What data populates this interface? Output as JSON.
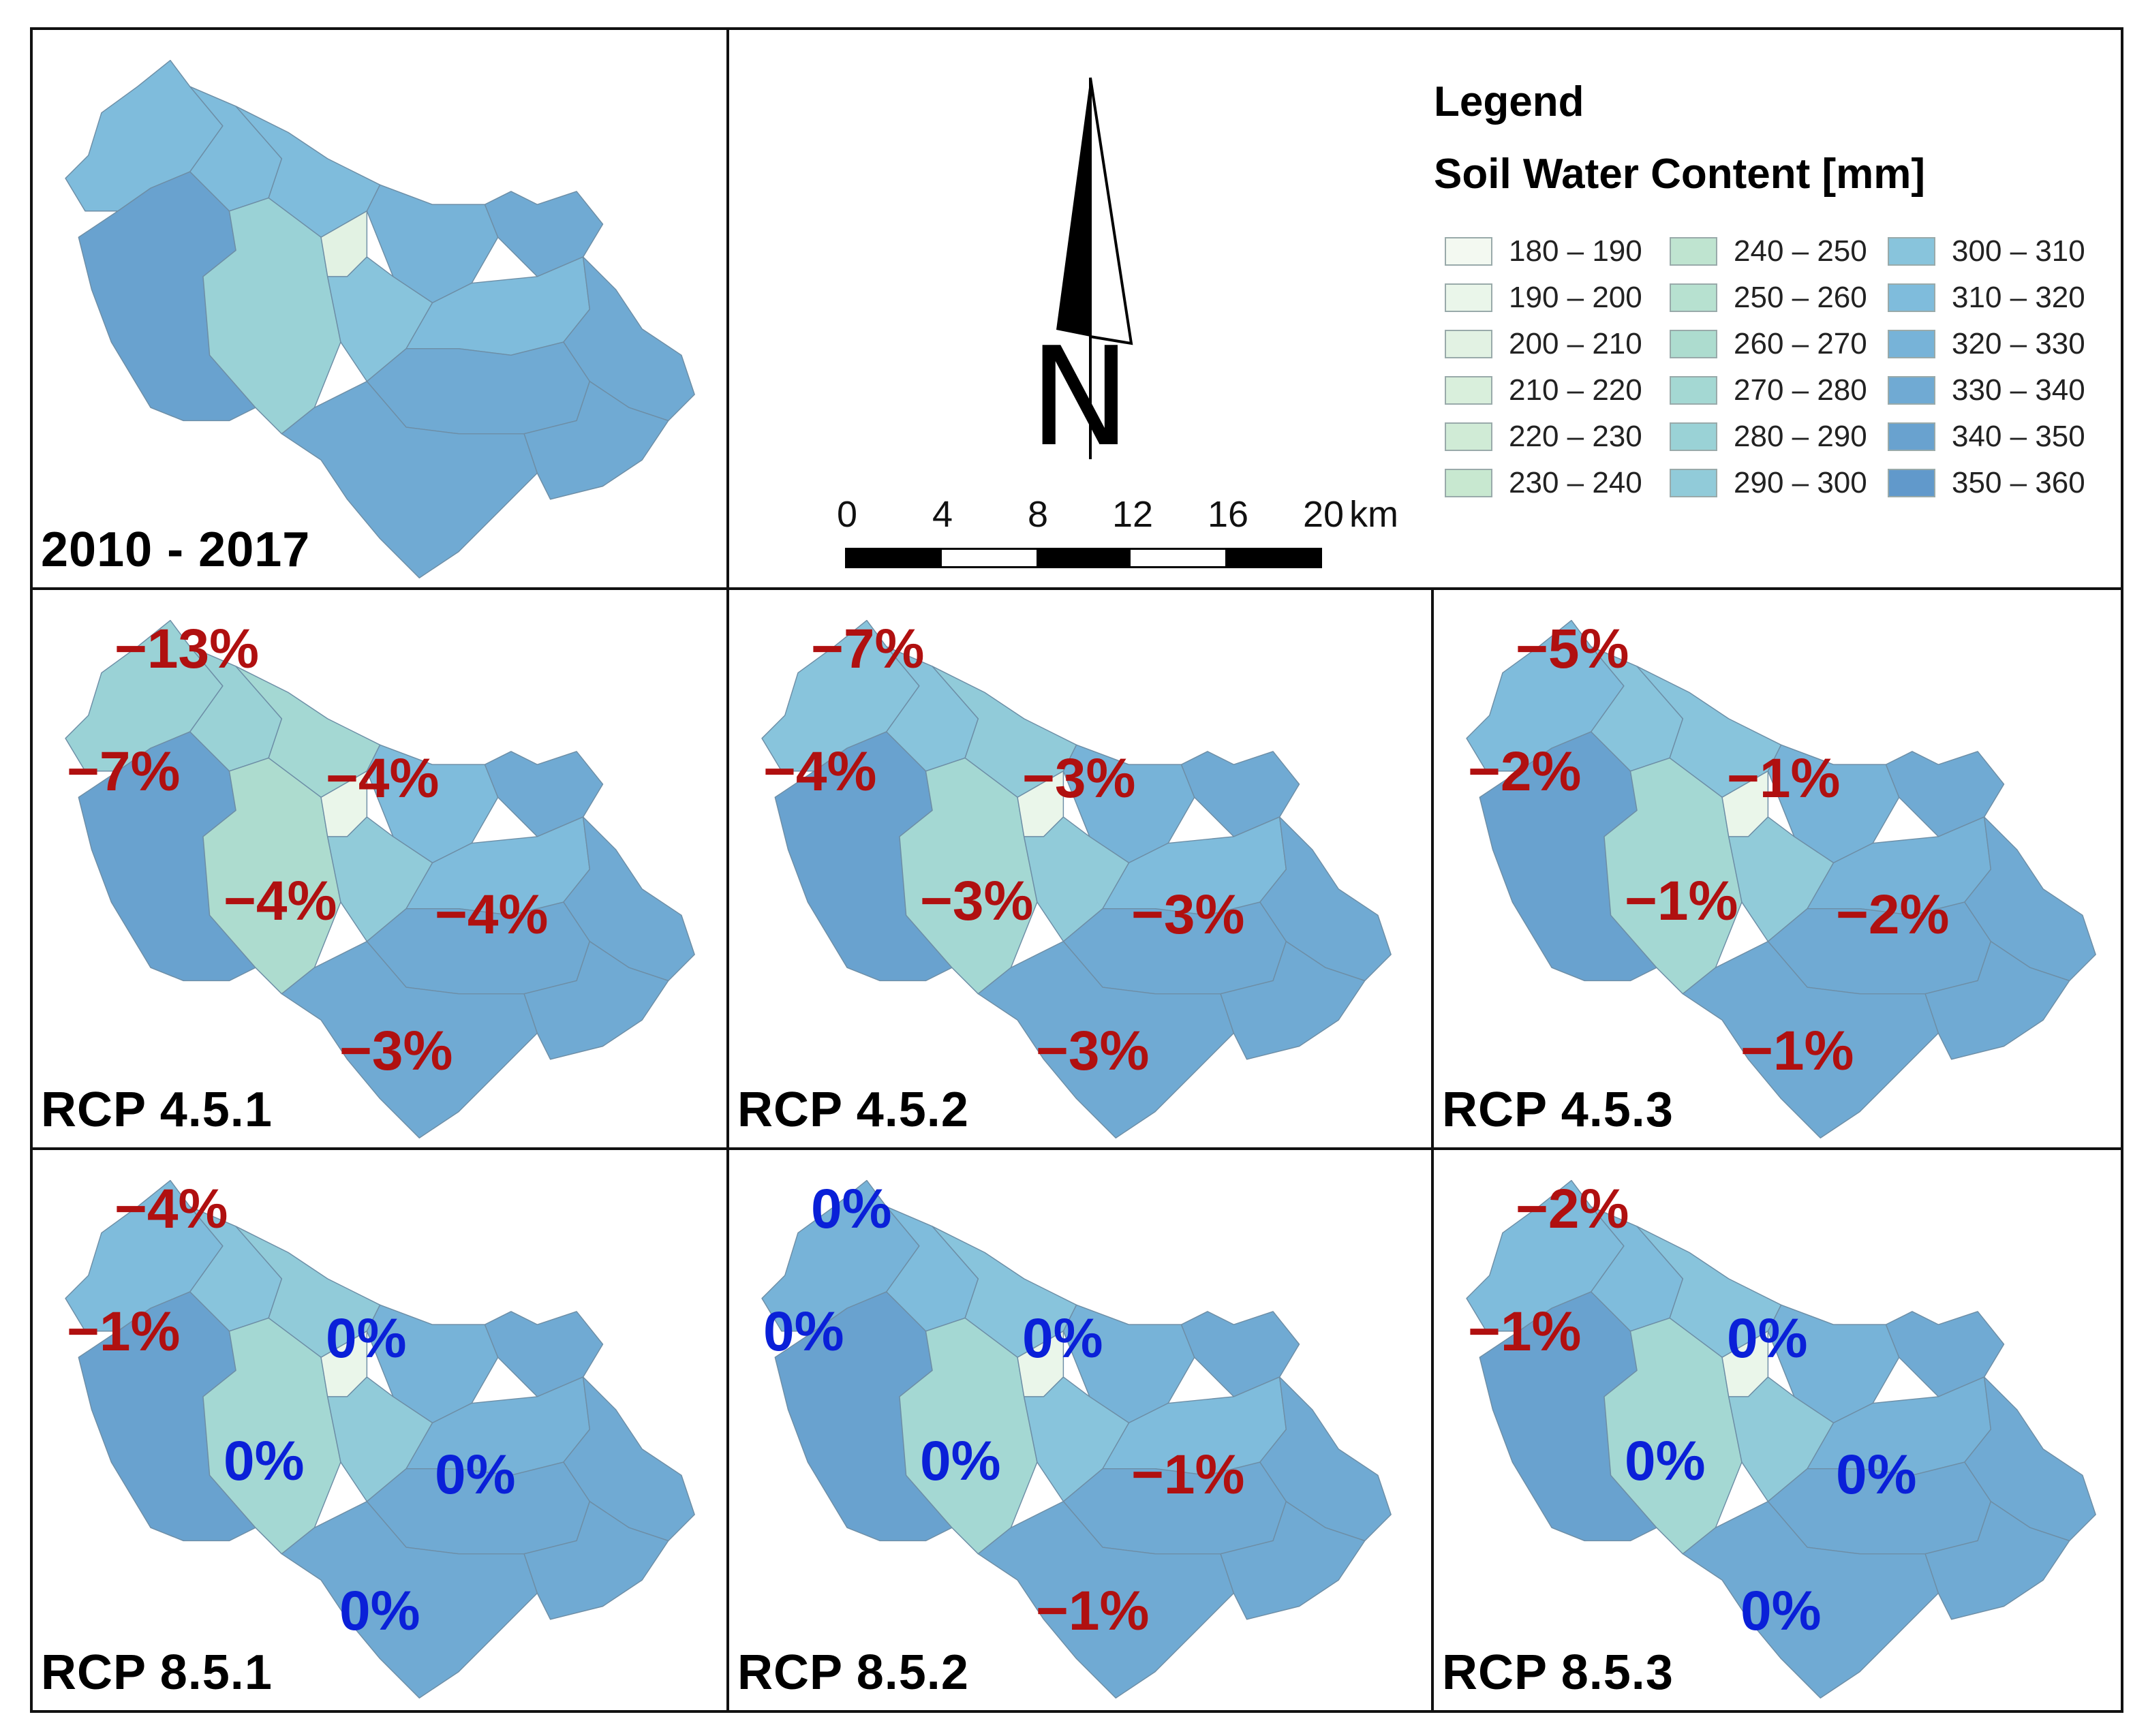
{
  "figure": {
    "legend": {
      "title": "Legend",
      "subtitle": "Soil Water Content [mm]",
      "classes": [
        {
          "label": "180 – 190",
          "color": "#f3f9f1"
        },
        {
          "label": "190 – 200",
          "color": "#eaf6ea"
        },
        {
          "label": "200 – 210",
          "color": "#e2f2e3"
        },
        {
          "label": "210 – 220",
          "color": "#d9efdc"
        },
        {
          "label": "220 – 230",
          "color": "#d0ebd6"
        },
        {
          "label": "230 – 240",
          "color": "#c8e8d0"
        },
        {
          "label": "240 – 250",
          "color": "#bfe4d0"
        },
        {
          "label": "250 – 260",
          "color": "#b7e1d0"
        },
        {
          "label": "260 – 270",
          "color": "#addccf"
        },
        {
          "label": "270 – 280",
          "color": "#a4d8d3"
        },
        {
          "label": "280 – 290",
          "color": "#9ad2d6"
        },
        {
          "label": "290 – 300",
          "color": "#91cbd9"
        },
        {
          "label": "300 – 310",
          "color": "#88c4dc"
        },
        {
          "label": "310 – 320",
          "color": "#7fbcdc"
        },
        {
          "label": "320 – 330",
          "color": "#77b3d8"
        },
        {
          "label": "330 – 340",
          "color": "#70aad3"
        },
        {
          "label": "340 – 350",
          "color": "#69a2cf"
        },
        {
          "label": "350 – 360",
          "color": "#6199cb"
        }
      ]
    },
    "north_arrow": {
      "letter": "N"
    },
    "scale_bar": {
      "ticks": [
        "0",
        "4",
        "8",
        "12",
        "16",
        "20"
      ],
      "unit": "km"
    },
    "colors": {
      "negative": "#b01010",
      "zero": "#0a20d8",
      "border": "#111111",
      "subbasin_edge": "#6d8ea6"
    },
    "panels": [
      {
        "id": "baseline",
        "label": "2010 - 2017",
        "changes": []
      },
      {
        "id": "rcp451",
        "label": "RCP 4.5.1",
        "changes": [
          {
            "region": "north",
            "text": "−13%",
            "sign": "neg"
          },
          {
            "region": "west",
            "text": "−7%",
            "sign": "neg"
          },
          {
            "region": "north-center",
            "text": "−4%",
            "sign": "neg"
          },
          {
            "region": "center",
            "text": "−4%",
            "sign": "neg"
          },
          {
            "region": "east",
            "text": "−4%",
            "sign": "neg"
          },
          {
            "region": "south",
            "text": "−3%",
            "sign": "neg"
          }
        ]
      },
      {
        "id": "rcp452",
        "label": "RCP 4.5.2",
        "changes": [
          {
            "region": "north",
            "text": "−7%",
            "sign": "neg"
          },
          {
            "region": "west",
            "text": "−4%",
            "sign": "neg"
          },
          {
            "region": "north-center",
            "text": "−3%",
            "sign": "neg"
          },
          {
            "region": "center",
            "text": "−3%",
            "sign": "neg"
          },
          {
            "region": "east",
            "text": "−3%",
            "sign": "neg"
          },
          {
            "region": "south",
            "text": "−3%",
            "sign": "neg"
          }
        ]
      },
      {
        "id": "rcp453",
        "label": "RCP 4.5.3",
        "changes": [
          {
            "region": "north",
            "text": "−5%",
            "sign": "neg"
          },
          {
            "region": "west",
            "text": "−2%",
            "sign": "neg"
          },
          {
            "region": "north-center",
            "text": "−1%",
            "sign": "neg"
          },
          {
            "region": "center",
            "text": "−1%",
            "sign": "neg"
          },
          {
            "region": "east",
            "text": "−2%",
            "sign": "neg"
          },
          {
            "region": "south",
            "text": "−1%",
            "sign": "neg"
          }
        ]
      },
      {
        "id": "rcp851",
        "label": "RCP 8.5.1",
        "changes": [
          {
            "region": "north",
            "text": "−4%",
            "sign": "neg"
          },
          {
            "region": "west",
            "text": "−1%",
            "sign": "neg"
          },
          {
            "region": "north-center",
            "text": "0%",
            "sign": "zero"
          },
          {
            "region": "center",
            "text": "0%",
            "sign": "zero"
          },
          {
            "region": "east",
            "text": "0%",
            "sign": "zero"
          },
          {
            "region": "south",
            "text": "0%",
            "sign": "zero"
          }
        ]
      },
      {
        "id": "rcp852",
        "label": "RCP 8.5.2",
        "changes": [
          {
            "region": "north",
            "text": "0%",
            "sign": "zero"
          },
          {
            "region": "west",
            "text": "0%",
            "sign": "zero"
          },
          {
            "region": "north-center",
            "text": "0%",
            "sign": "zero"
          },
          {
            "region": "center",
            "text": "0%",
            "sign": "zero"
          },
          {
            "region": "east",
            "text": "−1%",
            "sign": "neg"
          },
          {
            "region": "south",
            "text": "−1%",
            "sign": "neg"
          }
        ]
      },
      {
        "id": "rcp853",
        "label": "RCP 8.5.3",
        "changes": [
          {
            "region": "north",
            "text": "−2%",
            "sign": "neg"
          },
          {
            "region": "west",
            "text": "−1%",
            "sign": "neg"
          },
          {
            "region": "north-center",
            "text": "0%",
            "sign": "zero"
          },
          {
            "region": "center",
            "text": "0%",
            "sign": "zero"
          },
          {
            "region": "east",
            "text": "0%",
            "sign": "zero"
          },
          {
            "region": "south",
            "text": "0%",
            "sign": "zero"
          }
        ]
      }
    ]
  }
}
